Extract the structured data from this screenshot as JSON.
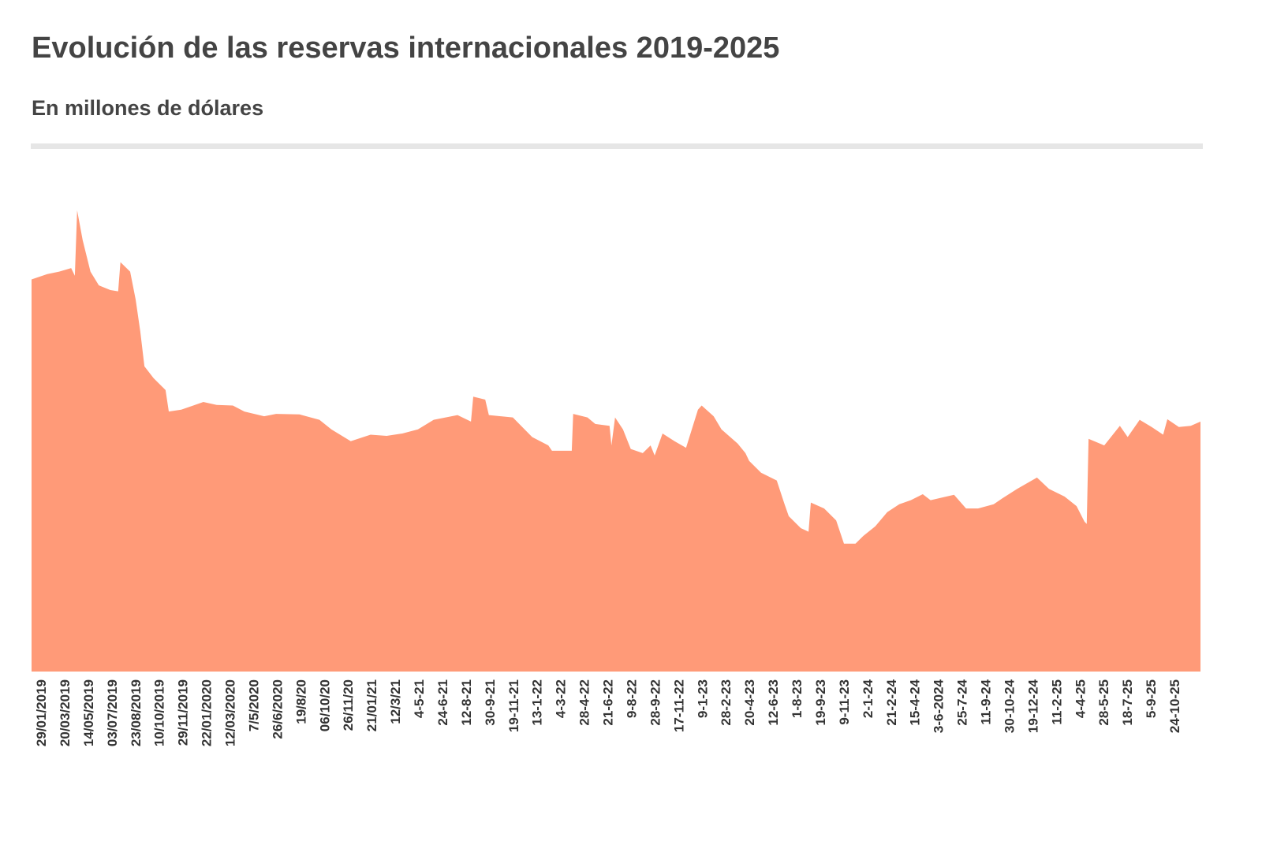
{
  "header": {
    "title": "Evolución de las reservas internacionales 2019-2025",
    "subtitle": "En millones de dólares"
  },
  "chart_data": {
    "type": "area",
    "title": "Evolución de las reservas internacionales 2019-2025",
    "subtitle": "En millones de dólares",
    "xlabel": "",
    "ylabel": "",
    "ylim": [
      0,
      80000
    ],
    "xlim": [
      "2019-01-03",
      "2025-12-15"
    ],
    "grid": false,
    "legend": "none",
    "color": "#FF9A78",
    "x_tick_labels": [
      "29/01/2019",
      "20/03/2019",
      "14/05/2019",
      "03/07/2019",
      "23/08/2019",
      "10/10/2019",
      "29/11/2019",
      "22/01/2020",
      "12/03/2020",
      "7/5/2020",
      "26/6/2020",
      "19/8/20",
      "06/10/20",
      "26/11/20",
      "21/01/21",
      "12/3/21",
      "4-5-21",
      "24-6-21",
      "12-8-21",
      "30-9-21",
      "19-11-21",
      "13-1-22",
      "4-3-22",
      "28-4-22",
      "21-6-22",
      "9-8-22",
      "28-9-22",
      "17-11-22",
      "9-1-23",
      "28-2-23",
      "20-4-23",
      "12-6-23",
      "1-8-23",
      "19-9-23",
      "9-11-23",
      "2-1-24",
      "21-2-24",
      "15-4-24",
      "3-6-2024",
      "25-7-24",
      "11-9-24",
      "30-10-24",
      "19-12-24",
      "11-2-25",
      "4-4-25",
      "28-5-25",
      "18-7-25",
      "5-9-25",
      "24-10-25"
    ],
    "series": [
      {
        "points": [
          [
            "2019-01-03",
            65900
          ],
          [
            "2019-02-06",
            66800
          ],
          [
            "2019-03-04",
            67200
          ],
          [
            "2019-03-30",
            67800
          ],
          [
            "2019-04-07",
            66500
          ],
          [
            "2019-04-12",
            77500
          ],
          [
            "2019-04-24",
            72500
          ],
          [
            "2019-05-11",
            67200
          ],
          [
            "2019-05-29",
            64900
          ],
          [
            "2019-06-23",
            64100
          ],
          [
            "2019-07-10",
            63900
          ],
          [
            "2019-07-15",
            68800
          ],
          [
            "2019-08-05",
            67200
          ],
          [
            "2019-08-17",
            62500
          ],
          [
            "2019-08-27",
            57200
          ],
          [
            "2019-09-05",
            51300
          ],
          [
            "2019-09-25",
            49300
          ],
          [
            "2019-10-21",
            47300
          ],
          [
            "2019-10-28",
            43700
          ],
          [
            "2019-11-24",
            44000
          ],
          [
            "2019-12-20",
            44700
          ],
          [
            "2020-01-11",
            45300
          ],
          [
            "2020-02-09",
            44800
          ],
          [
            "2020-03-15",
            44700
          ],
          [
            "2020-04-09",
            43700
          ],
          [
            "2020-05-22",
            42900
          ],
          [
            "2020-06-17",
            43300
          ],
          [
            "2020-08-07",
            43200
          ],
          [
            "2020-09-19",
            42300
          ],
          [
            "2020-10-15",
            40700
          ],
          [
            "2020-11-26",
            38700
          ],
          [
            "2021-01-08",
            39800
          ],
          [
            "2021-02-12",
            39600
          ],
          [
            "2021-03-18",
            40000
          ],
          [
            "2021-04-21",
            40700
          ],
          [
            "2021-05-25",
            42300
          ],
          [
            "2021-07-16",
            43100
          ],
          [
            "2021-08-14",
            42000
          ],
          [
            "2021-08-19",
            46200
          ],
          [
            "2021-09-14",
            45700
          ],
          [
            "2021-09-22",
            43100
          ],
          [
            "2021-11-13",
            42700
          ],
          [
            "2021-12-25",
            39400
          ],
          [
            "2022-01-29",
            38000
          ],
          [
            "2022-02-06",
            37100
          ],
          [
            "2022-03-21",
            37100
          ],
          [
            "2022-03-24",
            43300
          ],
          [
            "2022-04-24",
            42700
          ],
          [
            "2022-05-11",
            41600
          ],
          [
            "2022-06-11",
            41300
          ],
          [
            "2022-06-15",
            38000
          ],
          [
            "2022-06-23",
            42700
          ],
          [
            "2022-07-10",
            40700
          ],
          [
            "2022-07-27",
            37400
          ],
          [
            "2022-08-22",
            36700
          ],
          [
            "2022-09-08",
            38000
          ],
          [
            "2022-09-17",
            36300
          ],
          [
            "2022-10-04",
            40000
          ],
          [
            "2022-10-30",
            38700
          ],
          [
            "2022-11-24",
            37600
          ],
          [
            "2022-12-20",
            44000
          ],
          [
            "2022-12-28",
            44700
          ],
          [
            "2023-01-23",
            42900
          ],
          [
            "2023-02-09",
            40700
          ],
          [
            "2023-03-16",
            38300
          ],
          [
            "2023-04-02",
            36700
          ],
          [
            "2023-04-10",
            35400
          ],
          [
            "2023-05-06",
            33400
          ],
          [
            "2023-06-09",
            32100
          ],
          [
            "2023-06-26",
            28100
          ],
          [
            "2023-07-05",
            26100
          ],
          [
            "2023-07-31",
            24100
          ],
          [
            "2023-08-17",
            23500
          ],
          [
            "2023-08-22",
            28400
          ],
          [
            "2023-09-20",
            27400
          ],
          [
            "2023-10-16",
            25400
          ],
          [
            "2023-11-02",
            21500
          ],
          [
            "2023-11-27",
            21500
          ],
          [
            "2023-12-14",
            22800
          ],
          [
            "2024-01-09",
            24400
          ],
          [
            "2024-02-04",
            26800
          ],
          [
            "2024-03-01",
            28100
          ],
          [
            "2024-03-26",
            28800
          ],
          [
            "2024-04-21",
            29800
          ],
          [
            "2024-05-08",
            28800
          ],
          [
            "2024-06-11",
            29400
          ],
          [
            "2024-06-28",
            29700
          ],
          [
            "2024-07-24",
            27400
          ],
          [
            "2024-08-19",
            27400
          ],
          [
            "2024-09-22",
            28100
          ],
          [
            "2024-10-09",
            29000
          ],
          [
            "2024-11-12",
            30700
          ],
          [
            "2024-12-25",
            32600
          ],
          [
            "2025-01-20",
            30700
          ],
          [
            "2025-02-23",
            29400
          ],
          [
            "2025-03-21",
            27800
          ],
          [
            "2025-04-07",
            25200
          ],
          [
            "2025-04-12",
            24800
          ],
          [
            "2025-04-16",
            39100
          ],
          [
            "2025-05-20",
            38000
          ],
          [
            "2025-06-23",
            41300
          ],
          [
            "2025-07-10",
            39400
          ],
          [
            "2025-08-05",
            42300
          ],
          [
            "2025-08-31",
            41100
          ],
          [
            "2025-09-25",
            39800
          ],
          [
            "2025-10-04",
            42400
          ],
          [
            "2025-10-29",
            41100
          ],
          [
            "2025-11-24",
            41300
          ],
          [
            "2025-12-15",
            42000
          ]
        ]
      }
    ]
  }
}
